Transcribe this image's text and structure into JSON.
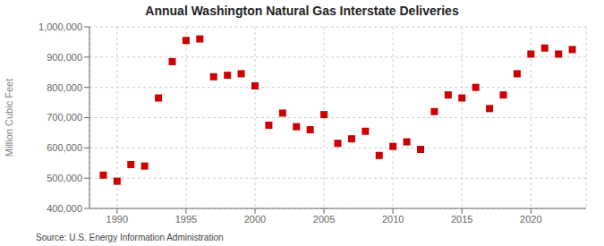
{
  "chart_data": {
    "type": "scatter",
    "title": "Annual Washington Natural Gas Interstate Deliveries",
    "ylabel": "Million Cubic Feet",
    "annotation": "Source: U.S. Energy Information Administration",
    "color": "#cc0000",
    "marker": "square",
    "grid": true,
    "xlim": [
      1988,
      2024
    ],
    "ylim": [
      400000,
      1000000
    ],
    "xticks": [
      1990,
      1995,
      2000,
      2005,
      2010,
      2015,
      2020
    ],
    "yticks": [
      {
        "value": 400000,
        "label": "400,000"
      },
      {
        "value": 500000,
        "label": "500,000"
      },
      {
        "value": 600000,
        "label": "600,000"
      },
      {
        "value": 700000,
        "label": "700,000"
      },
      {
        "value": 800000,
        "label": "800,000"
      },
      {
        "value": 900000,
        "label": "900,000"
      },
      {
        "value": 1000000,
        "label": "1,000,000"
      }
    ],
    "x": [
      1989,
      1990,
      1991,
      1992,
      1993,
      1994,
      1995,
      1996,
      1997,
      1998,
      1999,
      2000,
      2001,
      2002,
      2003,
      2004,
      2005,
      2006,
      2007,
      2008,
      2009,
      2010,
      2011,
      2012,
      2013,
      2014,
      2015,
      2016,
      2017,
      2018,
      2019,
      2020,
      2021,
      2022,
      2023
    ],
    "values": [
      510000,
      490000,
      545000,
      540000,
      765000,
      885000,
      955000,
      960000,
      835000,
      840000,
      845000,
      805000,
      675000,
      715000,
      670000,
      660000,
      710000,
      615000,
      630000,
      655000,
      575000,
      605000,
      620000,
      595000,
      720000,
      775000,
      765000,
      800000,
      730000,
      775000,
      845000,
      910000,
      930000,
      910000,
      925000
    ]
  }
}
